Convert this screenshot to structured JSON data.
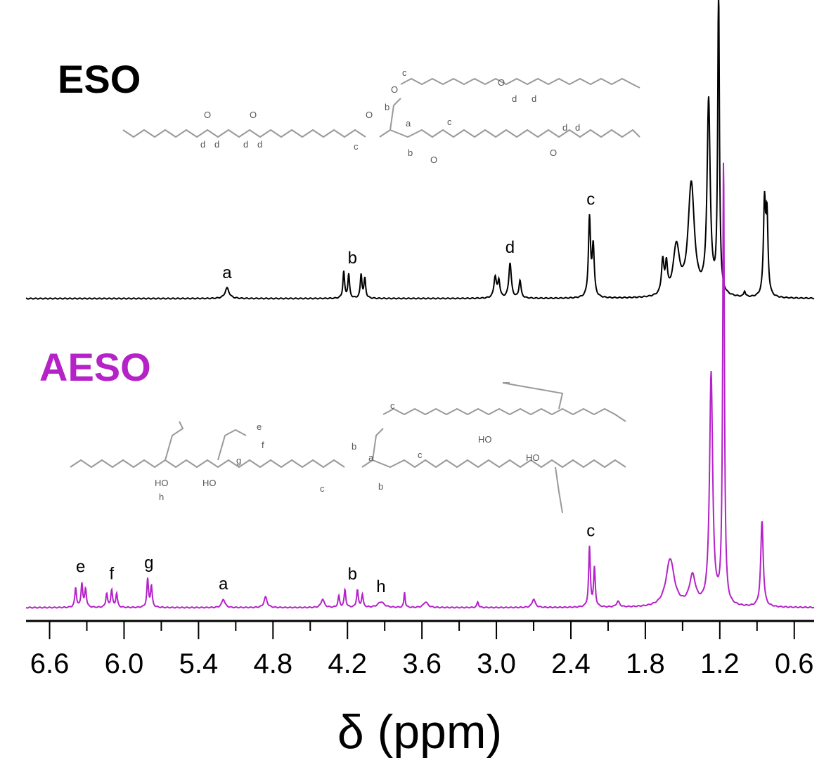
{
  "chart_data": {
    "type": "line",
    "title": "",
    "xlabel": "δ (ppm)",
    "ylabel": "",
    "xlim": [
      6.79,
      0.44
    ],
    "x_reversed": true,
    "xticks": [
      "6.6",
      "6.0",
      "5.4",
      "4.8",
      "4.2",
      "3.6",
      "3.0",
      "2.4",
      "1.8",
      "1.2",
      "0.6"
    ],
    "xtick_values": [
      6.6,
      6.0,
      5.4,
      4.8,
      4.2,
      3.6,
      3.0,
      2.4,
      1.8,
      1.2,
      0.6
    ],
    "grid": false,
    "series": [
      {
        "name": "ESO",
        "color": "#000000",
        "peaks": [
          [
            5.17,
            15,
            0.02
          ],
          [
            4.23,
            38,
            0.008
          ],
          [
            4.19,
            34,
            0.008
          ],
          [
            4.09,
            34,
            0.008
          ],
          [
            4.06,
            28,
            0.008
          ],
          [
            3.01,
            30,
            0.012
          ],
          [
            2.98,
            24,
            0.01
          ],
          [
            2.89,
            50,
            0.012
          ],
          [
            2.81,
            25,
            0.01
          ],
          [
            2.25,
            112,
            0.01
          ],
          [
            2.22,
            72,
            0.01
          ],
          [
            1.66,
            48,
            0.012
          ],
          [
            1.63,
            40,
            0.01
          ],
          [
            1.55,
            70,
            0.03
          ],
          [
            1.43,
            160,
            0.03
          ],
          [
            1.29,
            275,
            0.015
          ],
          [
            1.21,
            440,
            0.008
          ],
          [
            1.0,
            8,
            0.008
          ],
          [
            0.84,
            130,
            0.01
          ],
          [
            0.82,
            110,
            0.01
          ]
        ]
      },
      {
        "name": "AESO",
        "color": "#b422c8",
        "peaks": [
          [
            6.39,
            28,
            0.008
          ],
          [
            6.34,
            34,
            0.008
          ],
          [
            6.31,
            26,
            0.008
          ],
          [
            6.14,
            20,
            0.008
          ],
          [
            6.1,
            25,
            0.008
          ],
          [
            6.06,
            20,
            0.008
          ],
          [
            5.81,
            40,
            0.008
          ],
          [
            5.78,
            30,
            0.008
          ],
          [
            5.2,
            12,
            0.015
          ],
          [
            4.86,
            15,
            0.015
          ],
          [
            4.4,
            12,
            0.015
          ],
          [
            4.27,
            16,
            0.008
          ],
          [
            4.22,
            25,
            0.008
          ],
          [
            4.12,
            25,
            0.008
          ],
          [
            4.08,
            18,
            0.008
          ],
          [
            3.93,
            8,
            0.03
          ],
          [
            3.74,
            22,
            0.006
          ],
          [
            3.57,
            8,
            0.02
          ],
          [
            3.15,
            8,
            0.008
          ],
          [
            2.7,
            12,
            0.015
          ],
          [
            2.25,
            85,
            0.008
          ],
          [
            2.21,
            55,
            0.008
          ],
          [
            2.02,
            8,
            0.015
          ],
          [
            1.6,
            68,
            0.04
          ],
          [
            1.42,
            42,
            0.03
          ],
          [
            1.27,
            330,
            0.015
          ],
          [
            1.17,
            630,
            0.008
          ],
          [
            0.86,
            122,
            0.012
          ]
        ]
      }
    ],
    "annotations": [
      {
        "series": "ESO",
        "text": "a",
        "ppm": 5.17
      },
      {
        "series": "ESO",
        "text": "b",
        "ppm": 4.16
      },
      {
        "series": "ESO",
        "text": "d",
        "ppm": 2.89
      },
      {
        "series": "ESO",
        "text": "c",
        "ppm": 2.24
      },
      {
        "series": "AESO",
        "text": "e",
        "ppm": 6.35
      },
      {
        "series": "AESO",
        "text": "f",
        "ppm": 6.1
      },
      {
        "series": "AESO",
        "text": "g",
        "ppm": 5.8
      },
      {
        "series": "AESO",
        "text": "a",
        "ppm": 5.2
      },
      {
        "series": "AESO",
        "text": "b",
        "ppm": 4.16
      },
      {
        "series": "AESO",
        "text": "h",
        "ppm": 3.93
      },
      {
        "series": "AESO",
        "text": "c",
        "ppm": 2.24
      }
    ]
  },
  "labels": {
    "eso": "ESO",
    "aeso": "AESO"
  },
  "structures": {
    "eso_labels": [
      "c",
      "d",
      "d",
      "b",
      "a",
      "c",
      "d",
      "d",
      "d",
      "d",
      "d",
      "d",
      "c",
      "b"
    ],
    "aeso_labels": [
      "c",
      "e",
      "f",
      "g",
      "b",
      "a",
      "c",
      "h",
      "c",
      "b"
    ],
    "oxygen": "O",
    "hydroxyl": "HO"
  }
}
